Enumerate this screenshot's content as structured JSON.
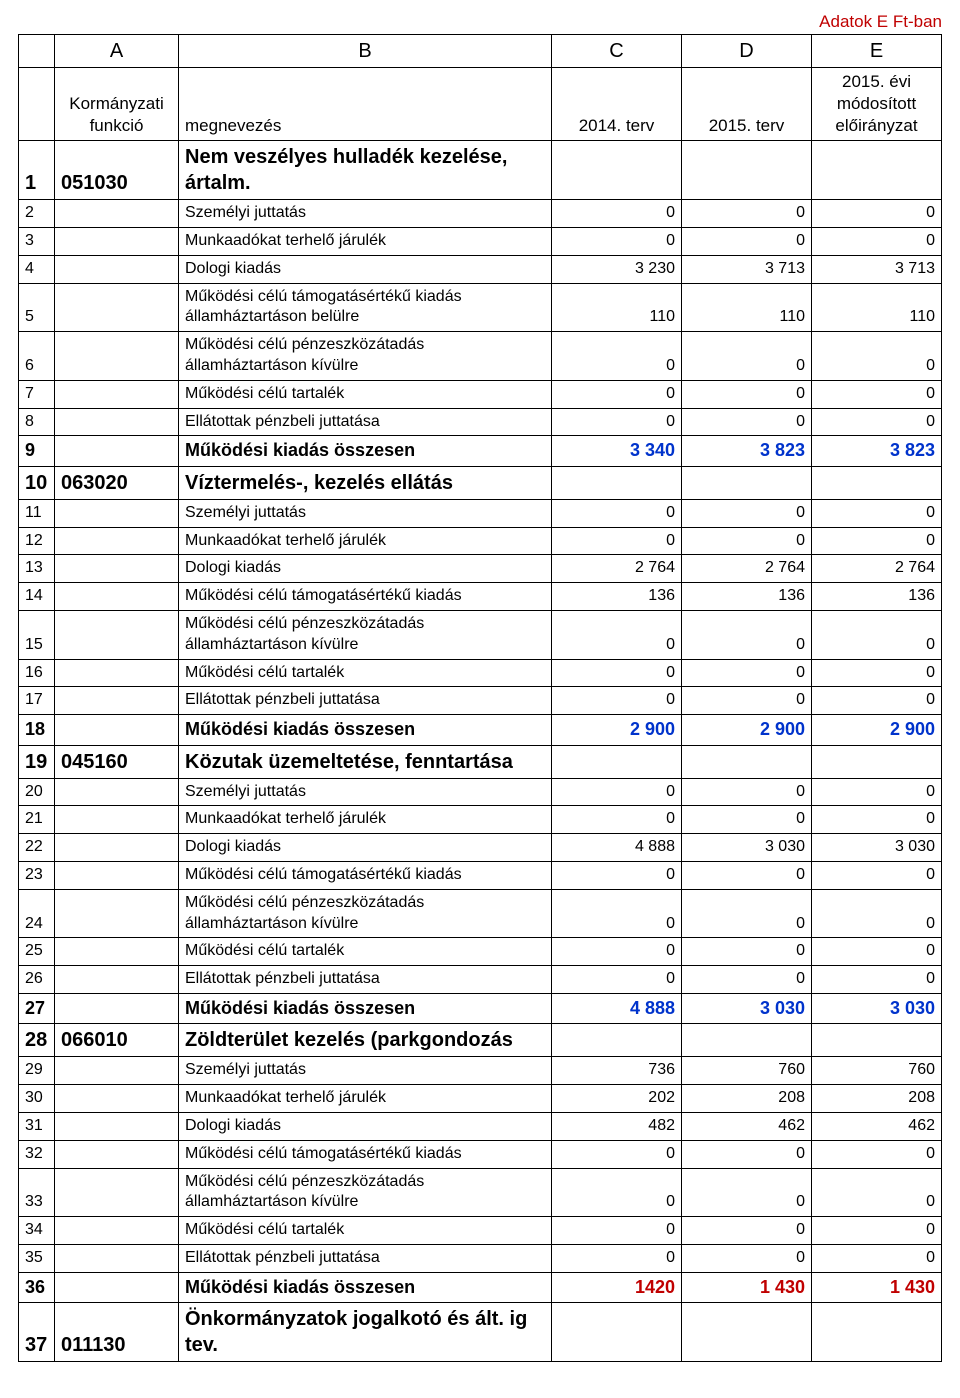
{
  "unit_label": "Adatok E Ft-ban",
  "col_letters": [
    "A",
    "B",
    "C",
    "D",
    "E"
  ],
  "headers": {
    "funkcio": "Kormányzati funkció",
    "megnevezes": "megnevezés",
    "c2014": "2014. terv",
    "c2015": "2015. terv",
    "eloir": "2015. évi módosított előirányzat"
  },
  "rows": [
    {
      "n": "1",
      "f": "051030",
      "name": "Nem veszélyes hulladék kezelése, ártalm.",
      "c": "",
      "d": "",
      "e": "",
      "cls": "section"
    },
    {
      "n": "2",
      "f": "",
      "name": "Személyi juttatás",
      "c": "0",
      "d": "0",
      "e": "0",
      "cls": ""
    },
    {
      "n": "3",
      "f": "",
      "name": "Munkaadókat terhelő járulék",
      "c": "0",
      "d": "0",
      "e": "0",
      "cls": ""
    },
    {
      "n": "4",
      "f": "",
      "name": "Dologi kiadás",
      "c": "3 230",
      "d": "3 713",
      "e": "3 713",
      "cls": ""
    },
    {
      "n": "5",
      "f": "",
      "name": "Működési célú támogatásértékű kiadás államháztartáson belülre",
      "c": "110",
      "d": "110",
      "e": "110",
      "cls": ""
    },
    {
      "n": "6",
      "f": "",
      "name": "Működési célú pénzeszközátadás államháztartáson kívülre",
      "c": "0",
      "d": "0",
      "e": "0",
      "cls": ""
    },
    {
      "n": "7",
      "f": "",
      "name": "Működési célú tartalék",
      "c": "0",
      "d": "0",
      "e": "0",
      "cls": ""
    },
    {
      "n": "8",
      "f": "",
      "name": "Ellátottak pénzbeli juttatása",
      "c": "0",
      "d": "0",
      "e": "0",
      "cls": ""
    },
    {
      "n": "9",
      "f": "",
      "name": "Működési kiadás összesen",
      "c": "3 340",
      "d": "3 823",
      "e": "3 823",
      "cls": "sum"
    },
    {
      "n": "10",
      "f": "063020",
      "name": "Víztermelés-, kezelés ellátás",
      "c": "",
      "d": "",
      "e": "",
      "cls": "section"
    },
    {
      "n": "11",
      "f": "",
      "name": "Személyi juttatás",
      "c": "0",
      "d": "0",
      "e": "0",
      "cls": ""
    },
    {
      "n": "12",
      "f": "",
      "name": "Munkaadókat terhelő járulék",
      "c": "0",
      "d": "0",
      "e": "0",
      "cls": ""
    },
    {
      "n": "13",
      "f": "",
      "name": "Dologi kiadás",
      "c": "2 764",
      "d": "2 764",
      "e": "2 764",
      "cls": ""
    },
    {
      "n": "14",
      "f": "",
      "name": "Működési célú támogatásértékű kiadás",
      "c": "136",
      "d": "136",
      "e": "136",
      "cls": ""
    },
    {
      "n": "15",
      "f": "",
      "name": "Működési célú pénzeszközátadás államháztartáson kívülre",
      "c": "0",
      "d": "0",
      "e": "0",
      "cls": ""
    },
    {
      "n": "16",
      "f": "",
      "name": "Működési célú tartalék",
      "c": "0",
      "d": "0",
      "e": "0",
      "cls": ""
    },
    {
      "n": "17",
      "f": "",
      "name": "Ellátottak pénzbeli juttatása",
      "c": "0",
      "d": "0",
      "e": "0",
      "cls": ""
    },
    {
      "n": "18",
      "f": "",
      "name": "Működési kiadás összesen",
      "c": "2 900",
      "d": "2 900",
      "e": "2 900",
      "cls": "sum"
    },
    {
      "n": "19",
      "f": "045160",
      "name": "Közutak üzemeltetése, fenntartása",
      "c": "",
      "d": "",
      "e": "",
      "cls": "section"
    },
    {
      "n": "20",
      "f": "",
      "name": "Személyi juttatás",
      "c": "0",
      "d": "0",
      "e": "0",
      "cls": ""
    },
    {
      "n": "21",
      "f": "",
      "name": "Munkaadókat terhelő járulék",
      "c": "0",
      "d": "0",
      "e": "0",
      "cls": ""
    },
    {
      "n": "22",
      "f": "",
      "name": "Dologi kiadás",
      "c": "4 888",
      "d": "3 030",
      "e": "3 030",
      "cls": ""
    },
    {
      "n": "23",
      "f": "",
      "name": "Működési célú támogatásértékű kiadás",
      "c": "0",
      "d": "0",
      "e": "0",
      "cls": ""
    },
    {
      "n": "24",
      "f": "",
      "name": "Működési célú pénzeszközátadás államháztartáson kívülre",
      "c": "0",
      "d": "0",
      "e": "0",
      "cls": ""
    },
    {
      "n": "25",
      "f": "",
      "name": "Működési célú tartalék",
      "c": "0",
      "d": "0",
      "e": "0",
      "cls": ""
    },
    {
      "n": "26",
      "f": "",
      "name": "Ellátottak pénzbeli juttatása",
      "c": "0",
      "d": "0",
      "e": "0",
      "cls": ""
    },
    {
      "n": "27",
      "f": "",
      "name": "Működési kiadás összesen",
      "c": "4 888",
      "d": "3 030",
      "e": "3 030",
      "cls": "sum"
    },
    {
      "n": "28",
      "f": "066010",
      "name": "Zöldterület kezelés (parkgondozás",
      "c": "",
      "d": "",
      "e": "",
      "cls": "section"
    },
    {
      "n": "29",
      "f": "",
      "name": "Személyi juttatás",
      "c": "736",
      "d": "760",
      "e": "760",
      "cls": ""
    },
    {
      "n": "30",
      "f": "",
      "name": "Munkaadókat terhelő járulék",
      "c": "202",
      "d": "208",
      "e": "208",
      "cls": ""
    },
    {
      "n": "31",
      "f": "",
      "name": "Dologi kiadás",
      "c": "482",
      "d": "462",
      "e": "462",
      "cls": ""
    },
    {
      "n": "32",
      "f": "",
      "name": "Működési célú támogatásértékű kiadás",
      "c": "0",
      "d": "0",
      "e": "0",
      "cls": ""
    },
    {
      "n": "33",
      "f": "",
      "name": "Működési célú pénzeszközátadás államháztartáson kívülre",
      "c": "0",
      "d": "0",
      "e": "0",
      "cls": ""
    },
    {
      "n": "34",
      "f": "",
      "name": "Működési célú tartalék",
      "c": "0",
      "d": "0",
      "e": "0",
      "cls": ""
    },
    {
      "n": "35",
      "f": "",
      "name": "Ellátottak pénzbeli juttatása",
      "c": "0",
      "d": "0",
      "e": "0",
      "cls": ""
    },
    {
      "n": "36",
      "f": "",
      "name": "Működési kiadás összesen",
      "c": "1420",
      "d": "1 430",
      "e": "1 430",
      "cls": "sum red"
    },
    {
      "n": "37",
      "f": "011130",
      "name": "Önkormányzatok jogalkotó és ált. ig tev.",
      "c": "",
      "d": "",
      "e": "",
      "cls": "section"
    }
  ]
}
